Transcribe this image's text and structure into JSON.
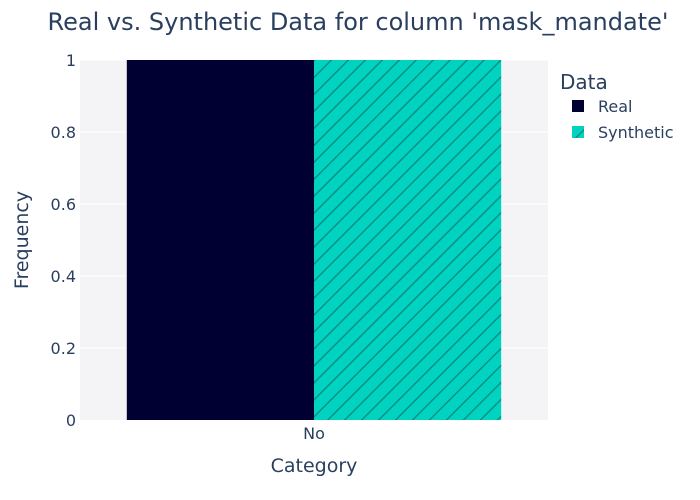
{
  "chart_data": {
    "type": "bar",
    "title": "Real vs. Synthetic Data for column 'mask_mandate'",
    "xlabel": "Category",
    "ylabel": "Frequency",
    "categories": [
      "No"
    ],
    "series": [
      {
        "name": "Real",
        "values": [
          1
        ],
        "color": "#000033",
        "pattern": "solid"
      },
      {
        "name": "Synthetic",
        "values": [
          1
        ],
        "color": "#00d4c0",
        "pattern": "diagonal-hatch"
      }
    ],
    "ylim": [
      0,
      1
    ],
    "yticks": [
      "0",
      "0.2",
      "0.4",
      "0.6",
      "0.8",
      "1"
    ],
    "grid": true,
    "legend": {
      "title": "Data",
      "position": "top-right"
    },
    "colors": {
      "plot_bg": "#f4f4f6",
      "text": "#2a3f5f"
    }
  }
}
